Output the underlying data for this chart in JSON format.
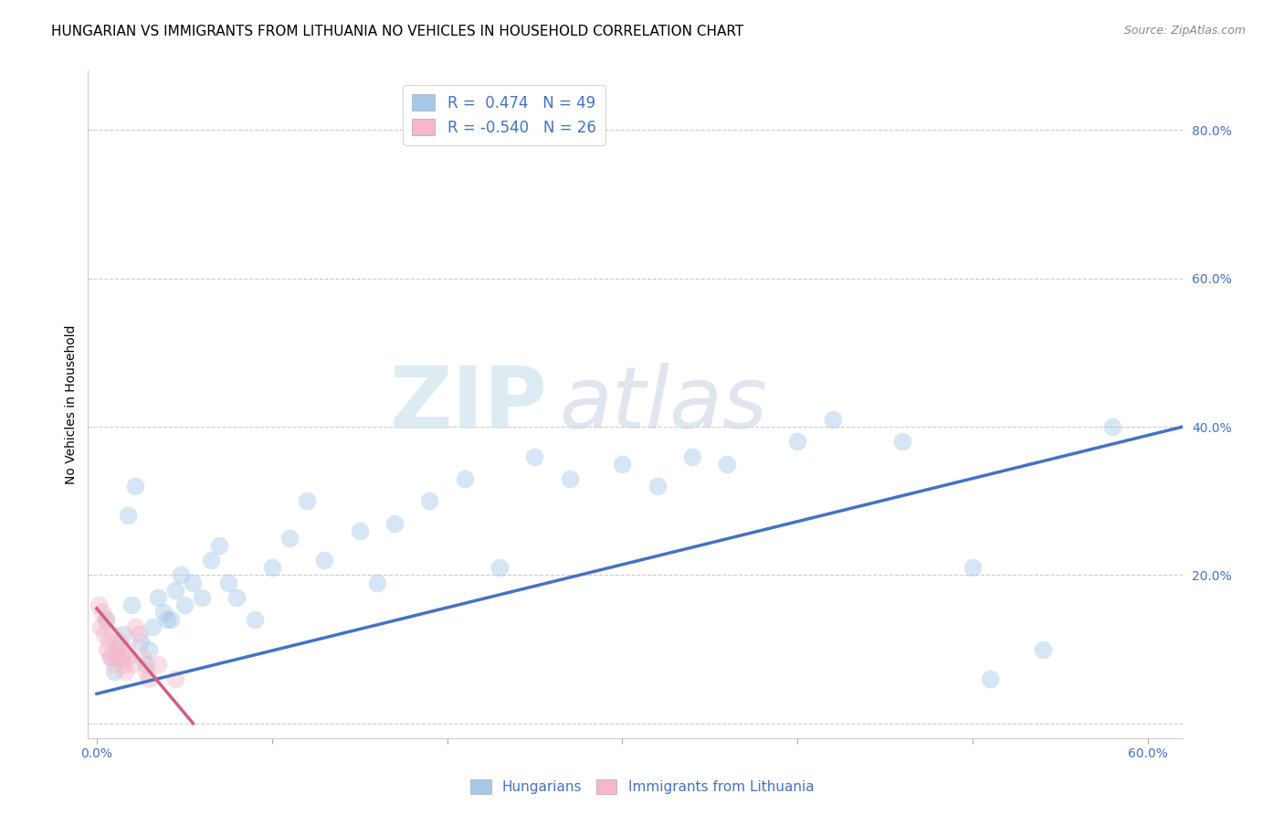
{
  "title": "HUNGARIAN VS IMMIGRANTS FROM LITHUANIA NO VEHICLES IN HOUSEHOLD CORRELATION CHART",
  "source": "Source: ZipAtlas.com",
  "ylabel": "No Vehicles in Household",
  "xlim": [
    -0.005,
    0.62
  ],
  "ylim": [
    -0.02,
    0.88
  ],
  "xticks": [
    0.0,
    0.1,
    0.2,
    0.3,
    0.4,
    0.5,
    0.6
  ],
  "xticklabels": [
    "0.0%",
    "",
    "",
    "",
    "",
    "",
    "60.0%"
  ],
  "yticks": [
    0.0,
    0.2,
    0.4,
    0.6,
    0.8
  ],
  "yticklabels": [
    "",
    "20.0%",
    "40.0%",
    "60.0%",
    "80.0%"
  ],
  "legend_line1": "R =  0.474   N = 49",
  "legend_line2": "R = -0.540   N = 26",
  "blue_scatter_x": [
    0.005,
    0.008,
    0.01,
    0.012,
    0.015,
    0.018,
    0.02,
    0.022,
    0.025,
    0.028,
    0.03,
    0.032,
    0.035,
    0.038,
    0.04,
    0.042,
    0.045,
    0.048,
    0.05,
    0.055,
    0.06,
    0.065,
    0.07,
    0.075,
    0.08,
    0.09,
    0.1,
    0.11,
    0.12,
    0.13,
    0.15,
    0.16,
    0.17,
    0.19,
    0.21,
    0.23,
    0.25,
    0.27,
    0.3,
    0.32,
    0.34,
    0.36,
    0.4,
    0.42,
    0.46,
    0.5,
    0.51,
    0.54,
    0.58
  ],
  "blue_scatter_y": [
    0.14,
    0.09,
    0.07,
    0.1,
    0.12,
    0.28,
    0.16,
    0.32,
    0.11,
    0.08,
    0.1,
    0.13,
    0.17,
    0.15,
    0.14,
    0.14,
    0.18,
    0.2,
    0.16,
    0.19,
    0.17,
    0.22,
    0.24,
    0.19,
    0.17,
    0.14,
    0.21,
    0.25,
    0.3,
    0.22,
    0.26,
    0.19,
    0.27,
    0.3,
    0.33,
    0.21,
    0.36,
    0.33,
    0.35,
    0.32,
    0.36,
    0.35,
    0.38,
    0.41,
    0.38,
    0.21,
    0.06,
    0.1,
    0.4
  ],
  "pink_scatter_x": [
    0.001,
    0.002,
    0.003,
    0.004,
    0.005,
    0.006,
    0.007,
    0.008,
    0.009,
    0.01,
    0.011,
    0.012,
    0.013,
    0.014,
    0.015,
    0.016,
    0.017,
    0.018,
    0.02,
    0.022,
    0.024,
    0.026,
    0.028,
    0.03,
    0.035,
    0.045
  ],
  "pink_scatter_y": [
    0.16,
    0.13,
    0.15,
    0.12,
    0.14,
    0.1,
    0.11,
    0.09,
    0.12,
    0.08,
    0.1,
    0.09,
    0.11,
    0.09,
    0.08,
    0.07,
    0.1,
    0.09,
    0.08,
    0.13,
    0.12,
    0.09,
    0.07,
    0.06,
    0.08,
    0.06
  ],
  "blue_line_x": [
    0.0,
    0.62
  ],
  "blue_line_y": [
    0.04,
    0.4
  ],
  "pink_line_x": [
    0.0,
    0.055
  ],
  "pink_line_y": [
    0.155,
    0.0
  ],
  "blue_color": "#a8c8e8",
  "blue_line_color": "#4472c4",
  "pink_color": "#f4b8c8",
  "pink_line_color": "#d06080",
  "background_color": "#ffffff",
  "grid_color": "#cccccc",
  "watermark_zip": "ZIP",
  "watermark_atlas": "atlas",
  "title_fontsize": 11,
  "axis_label_fontsize": 10,
  "tick_fontsize": 10,
  "scatter_size": 200,
  "scatter_alpha": 0.45,
  "line_width": 2.5
}
